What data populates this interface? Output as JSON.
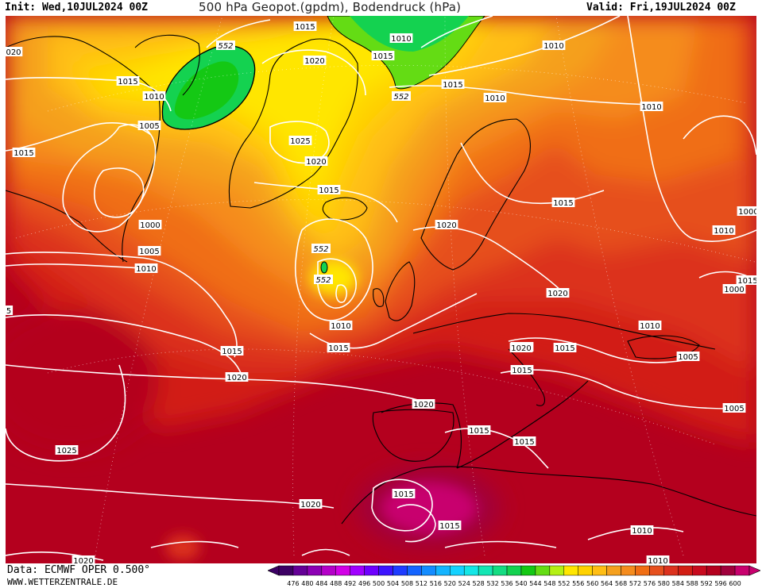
{
  "header": {
    "init": "Init: Wed,10JUL2024 00Z",
    "title": "500 hPa Geopot.(gpdm), Bodendruck (hPa)",
    "valid": "Valid: Fri,19JUL2024 00Z"
  },
  "footer": {
    "data_source": "Data: ECMWF OPER 0.500°",
    "site": "WWW.WETTERZENTRALE.DE"
  },
  "colors": {
    "deep_red": "#b4001e",
    "red": "#d21e14",
    "orange_red": "#e6461e",
    "orange": "#f06e14",
    "light_orange": "#f59628",
    "amber": "#ffbe14",
    "yellow": "#ffe600",
    "green": "#14d23c",
    "magenta": "#c8006e",
    "isobar": "#ffffff",
    "coast": "#000000"
  },
  "colorbar": {
    "values": [
      "476",
      "480",
      "484",
      "488",
      "492",
      "496",
      "500",
      "504",
      "508",
      "512",
      "516",
      "520",
      "524",
      "528",
      "532",
      "536",
      "540",
      "544",
      "548",
      "552",
      "556",
      "560",
      "564",
      "568",
      "572",
      "576",
      "580",
      "584",
      "588",
      "592",
      "596",
      "600"
    ],
    "colors": [
      "#3c0064",
      "#640096",
      "#8c00b4",
      "#b400c8",
      "#d200e6",
      "#a000ff",
      "#6e00ff",
      "#3c14ff",
      "#1e3cff",
      "#1464ff",
      "#148cff",
      "#14b4ff",
      "#14d2ff",
      "#14e6e6",
      "#14e6b4",
      "#14dc82",
      "#14d250",
      "#14c814",
      "#64dc14",
      "#b4f014",
      "#ffe600",
      "#ffd200",
      "#ffbe14",
      "#f5a01e",
      "#f58c1e",
      "#f06e14",
      "#e6501e",
      "#dc321e",
      "#d21e14",
      "#c80a1e",
      "#b4001e",
      "#a0003c",
      "#c8006e"
    ]
  },
  "isobar_labels": [
    {
      "t": "1015"
    },
    {
      "t": "1010"
    },
    {
      "t": "1015"
    },
    {
      "t": "1020"
    },
    {
      "t": "1015"
    },
    {
      "t": "1010"
    },
    {
      "t": "1015"
    },
    {
      "t": "1010"
    },
    {
      "t": "1010"
    },
    {
      "t": "1005"
    },
    {
      "t": "1015"
    },
    {
      "t": "1025"
    },
    {
      "t": "1020"
    },
    {
      "t": "1015"
    },
    {
      "t": "1000"
    },
    {
      "t": "1005"
    },
    {
      "t": "1010"
    },
    {
      "t": "1020"
    },
    {
      "t": "1015"
    },
    {
      "t": "1010"
    },
    {
      "t": "1000"
    },
    {
      "t": "1010"
    },
    {
      "t": "1000"
    },
    {
      "t": "1020"
    },
    {
      "t": "1010"
    },
    {
      "t": "1015"
    },
    {
      "t": "1015"
    },
    {
      "t": "1020"
    },
    {
      "t": "1015"
    },
    {
      "t": "1010"
    },
    {
      "t": "1005"
    },
    {
      "t": "1020"
    },
    {
      "t": "1015"
    },
    {
      "t": "1015"
    },
    {
      "t": "1015"
    },
    {
      "t": "1015"
    },
    {
      "t": "1025"
    },
    {
      "t": "1020"
    },
    {
      "t": "1010"
    },
    {
      "t": "1010"
    },
    {
      "t": "1005"
    },
    {
      "t": "1015"
    },
    {
      "t": "1015"
    },
    {
      "t": "1020"
    },
    {
      "t": "1015"
    },
    {
      "t": "020"
    },
    {
      "t": "5"
    },
    {
      "t": "1020"
    }
  ],
  "contour_labels": [
    {
      "t": "552"
    },
    {
      "t": "552"
    },
    {
      "t": "552"
    },
    {
      "t": "552"
    }
  ]
}
